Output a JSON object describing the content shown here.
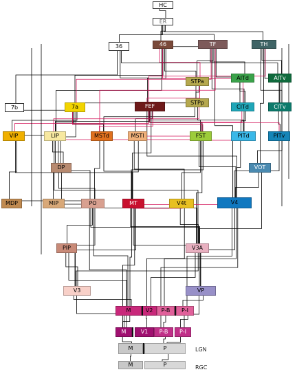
{
  "diagram": {
    "nodes": [
      {
        "id": "HC",
        "label": "HC",
        "fill": "#ffffff",
        "color": "#000000"
      },
      {
        "id": "ER",
        "label": "ER",
        "fill": "#ffffff",
        "color": "#666666"
      },
      {
        "id": "36",
        "label": "36",
        "fill": "#ffffff",
        "color": "#000000"
      },
      {
        "id": "46",
        "label": "46",
        "fill": "#7a4a3a",
        "color": "#ffffff"
      },
      {
        "id": "TF",
        "label": "TF",
        "fill": "#7d5a5a",
        "color": "#ffffff"
      },
      {
        "id": "TH",
        "label": "TH",
        "fill": "#3f6466",
        "color": "#ffffff"
      },
      {
        "id": "AITd",
        "label": "AITd",
        "fill": "#3aa24a",
        "color": "#000000"
      },
      {
        "id": "AITv",
        "label": "AITv",
        "fill": "#0f6a3c",
        "color": "#ffffff"
      },
      {
        "id": "STPa",
        "label": "STPa",
        "fill": "#b5a84e",
        "color": "#000000"
      },
      {
        "id": "7b",
        "label": "7b",
        "fill": "#ffffff",
        "color": "#000000"
      },
      {
        "id": "7a",
        "label": "7a",
        "fill": "#f2d400",
        "color": "#000000"
      },
      {
        "id": "FEF",
        "label": "FEF",
        "fill": "#6e1a1a",
        "color": "#ffffff"
      },
      {
        "id": "STPp",
        "label": "STPp",
        "fill": "#b5a84e",
        "color": "#000000"
      },
      {
        "id": "CITd",
        "label": "CITd",
        "fill": "#1fa6b8",
        "color": "#000000"
      },
      {
        "id": "CITv",
        "label": "CITv",
        "fill": "#0d7a6b",
        "color": "#ffffff"
      },
      {
        "id": "VIP",
        "label": "VIP",
        "fill": "#f0b000",
        "color": "#000000"
      },
      {
        "id": "LIP",
        "label": "LIP",
        "fill": "#f7e8a0",
        "color": "#000000"
      },
      {
        "id": "MSTd",
        "label": "MSTd",
        "fill": "#e0701e",
        "color": "#000000"
      },
      {
        "id": "MSTl",
        "label": "MSTl",
        "fill": "#f0b07a",
        "color": "#000000"
      },
      {
        "id": "FST",
        "label": "FST",
        "fill": "#9ccc3a",
        "color": "#000000"
      },
      {
        "id": "PITd",
        "label": "PITd",
        "fill": "#3ab8e8",
        "color": "#000000"
      },
      {
        "id": "PITv",
        "label": "PITv",
        "fill": "#1585b8",
        "color": "#000000"
      },
      {
        "id": "DP",
        "label": "DP",
        "fill": "#b88a70",
        "color": "#000000"
      },
      {
        "id": "VOT",
        "label": "VOT",
        "fill": "#4a8ab0",
        "color": "#ffffff"
      },
      {
        "id": "MDP",
        "label": "MDP",
        "fill": "#c08a50",
        "color": "#000000"
      },
      {
        "id": "MIP",
        "label": "MIP",
        "fill": "#d8a878",
        "color": "#000000"
      },
      {
        "id": "PO",
        "label": "PO",
        "fill": "#d8a090",
        "color": "#000000"
      },
      {
        "id": "MT",
        "label": "MT",
        "fill": "#c8102e",
        "color": "#ffffff"
      },
      {
        "id": "V4t",
        "label": "V4t",
        "fill": "#e8c020",
        "color": "#000000"
      },
      {
        "id": "V4",
        "label": "V4",
        "fill": "#1078c0",
        "color": "#000000"
      },
      {
        "id": "PIP",
        "label": "PIP",
        "fill": "#c88a78",
        "color": "#000000"
      },
      {
        "id": "V3A",
        "label": "V3A",
        "fill": "#e8b0c0",
        "color": "#000000"
      },
      {
        "id": "V3",
        "label": "V3",
        "fill": "#f8d0c8",
        "color": "#000000"
      },
      {
        "id": "VP",
        "label": "VP",
        "fill": "#9890c8",
        "color": "#000000"
      },
      {
        "id": "V2M",
        "label": "M",
        "fill": "#c8287a",
        "color": "#000000"
      },
      {
        "id": "V2",
        "label": "V2",
        "fill": "#c8287a",
        "color": "#000000"
      },
      {
        "id": "V2PB",
        "label": "P-B",
        "fill": "#e0609a",
        "color": "#000000"
      },
      {
        "id": "V2PI",
        "label": "P-I",
        "fill": "#e0609a",
        "color": "#000000"
      },
      {
        "id": "V1M",
        "label": "M",
        "fill": "#a01070",
        "color": "#ffffff"
      },
      {
        "id": "V1",
        "label": "V1",
        "fill": "#a01070",
        "color": "#ffffff"
      },
      {
        "id": "V1PB",
        "label": "P-B",
        "fill": "#c03088",
        "color": "#ffffff"
      },
      {
        "id": "V1PI",
        "label": "P-I",
        "fill": "#c03088",
        "color": "#ffffff"
      },
      {
        "id": "LGNM",
        "label": "M",
        "fill": "#c8c8c8",
        "color": "#000000"
      },
      {
        "id": "LGNP",
        "label": "P",
        "fill": "#d8d8d8",
        "color": "#000000"
      },
      {
        "id": "RGCM",
        "label": "M",
        "fill": "#c8c8c8",
        "color": "#000000"
      },
      {
        "id": "RGCP",
        "label": "P",
        "fill": "#d8d8d8",
        "color": "#000000"
      }
    ],
    "side_labels": [
      {
        "id": "lgn",
        "text": "LGN"
      },
      {
        "id": "rgc",
        "text": "RGC"
      }
    ],
    "edges": [
      [
        "HC",
        "ER"
      ],
      [
        "ER",
        "36"
      ],
      [
        "ER",
        "46"
      ],
      [
        "ER",
        "TF"
      ],
      [
        "ER",
        "TH"
      ],
      [
        "46",
        "TF"
      ],
      [
        "46",
        "7a"
      ],
      [
        "46",
        "FEF"
      ],
      [
        "46",
        "LIP"
      ],
      [
        "46",
        "STPp"
      ],
      [
        "TF",
        "AITd"
      ],
      [
        "TF",
        "STPa"
      ],
      [
        "TF",
        "CITd"
      ],
      [
        "TF",
        "PITd"
      ],
      [
        "TF",
        "V4"
      ],
      [
        "TH",
        "AITv"
      ],
      [
        "TH",
        "CITv"
      ],
      [
        "TH",
        "PITv"
      ],
      [
        "TH",
        "VOT"
      ],
      [
        "36",
        "AITv"
      ],
      [
        "36",
        "7b"
      ],
      [
        "36",
        "FEF"
      ],
      [
        "AITd",
        "CITd"
      ],
      [
        "AITv",
        "CITv"
      ],
      [
        "CITd",
        "PITd"
      ],
      [
        "CITv",
        "PITv"
      ],
      [
        "STPa",
        "STPp"
      ],
      [
        "STPp",
        "MSTd"
      ],
      [
        "STPp",
        "FST"
      ],
      [
        "STPp",
        "7a"
      ],
      [
        "7a",
        "LIP"
      ],
      [
        "7a",
        "VIP"
      ],
      [
        "7a",
        "MSTd"
      ],
      [
        "7a",
        "DP"
      ],
      [
        "7a",
        "7b"
      ],
      [
        "FEF",
        "LIP"
      ],
      [
        "FEF",
        "MSTl"
      ],
      [
        "FEF",
        "FST"
      ],
      [
        "FEF",
        "MT"
      ],
      [
        "FEF",
        "V4"
      ],
      [
        "FEF",
        "PITd"
      ],
      [
        "VIP",
        "MDP"
      ],
      [
        "VIP",
        "LIP"
      ],
      [
        "VIP",
        "MT"
      ],
      [
        "LIP",
        "DP"
      ],
      [
        "LIP",
        "MIP"
      ],
      [
        "LIP",
        "PO"
      ],
      [
        "LIP",
        "V3A"
      ],
      [
        "MSTd",
        "MT"
      ],
      [
        "MSTd",
        "PO"
      ],
      [
        "MSTl",
        "MT"
      ],
      [
        "MSTl",
        "V4t"
      ],
      [
        "FST",
        "V4t"
      ],
      [
        "FST",
        "MT"
      ],
      [
        "FST",
        "V4"
      ],
      [
        "FST",
        "V3A"
      ],
      [
        "PITd",
        "V4"
      ],
      [
        "PITv",
        "V4"
      ],
      [
        "PITv",
        "VOT"
      ],
      [
        "VOT",
        "V4"
      ],
      [
        "VOT",
        "VP"
      ],
      [
        "DP",
        "PO"
      ],
      [
        "DP",
        "V3A"
      ],
      [
        "MDP",
        "PO"
      ],
      [
        "MIP",
        "PO"
      ],
      [
        "PO",
        "V3"
      ],
      [
        "PO",
        "V3A"
      ],
      [
        "PO",
        "V2M"
      ],
      [
        "PO",
        "V1M"
      ],
      [
        "PO",
        "PIP"
      ],
      [
        "MT",
        "V3"
      ],
      [
        "MT",
        "V2M"
      ],
      [
        "MT",
        "V1M"
      ],
      [
        "MT",
        "V3A"
      ],
      [
        "MT",
        "VP"
      ],
      [
        "V4t",
        "V2"
      ],
      [
        "V4t",
        "V3A"
      ],
      [
        "V4",
        "V2PB"
      ],
      [
        "V4",
        "V2PI"
      ],
      [
        "V4",
        "VP"
      ],
      [
        "V4",
        "V1PB"
      ],
      [
        "PIP",
        "V3"
      ],
      [
        "PIP",
        "V2M"
      ],
      [
        "V3A",
        "V2"
      ],
      [
        "V3A",
        "V3"
      ],
      [
        "V3",
        "V2M"
      ],
      [
        "V3",
        "V1M"
      ],
      [
        "VP",
        "V2PI"
      ],
      [
        "VP",
        "V1PI"
      ],
      [
        "V2M",
        "V1M"
      ],
      [
        "V2",
        "V1"
      ],
      [
        "V2PB",
        "V1PB"
      ],
      [
        "V2PI",
        "V1PI"
      ],
      [
        "V1M",
        "LGNM"
      ],
      [
        "V1PB",
        "LGNP"
      ],
      [
        "V1PI",
        "LGNP"
      ],
      [
        "LGNM",
        "RGCM"
      ],
      [
        "LGNP",
        "RGCP"
      ]
    ],
    "accent_edges": [
      [
        "46",
        "STPa"
      ],
      [
        "46",
        "CITd"
      ],
      [
        "TF",
        "MSTd"
      ],
      [
        "TF",
        "7a"
      ],
      [
        "TH",
        "FEF"
      ],
      [
        "FEF",
        "STPa"
      ],
      [
        "FEF",
        "PITv"
      ],
      [
        "FEF",
        "MSTd"
      ],
      [
        "FEF",
        "VIP"
      ],
      [
        "STPp",
        "LIP"
      ],
      [
        "7a",
        "FST"
      ],
      [
        "MSTl",
        "FST"
      ],
      [
        "LIP",
        "FST"
      ],
      [
        "CITd",
        "FST"
      ],
      [
        "PITd",
        "FST"
      ],
      [
        "V4",
        "MT"
      ],
      [
        "V4t",
        "MT"
      ]
    ],
    "wire_color": "#000000",
    "accent_wire_color": "#d4145a"
  }
}
